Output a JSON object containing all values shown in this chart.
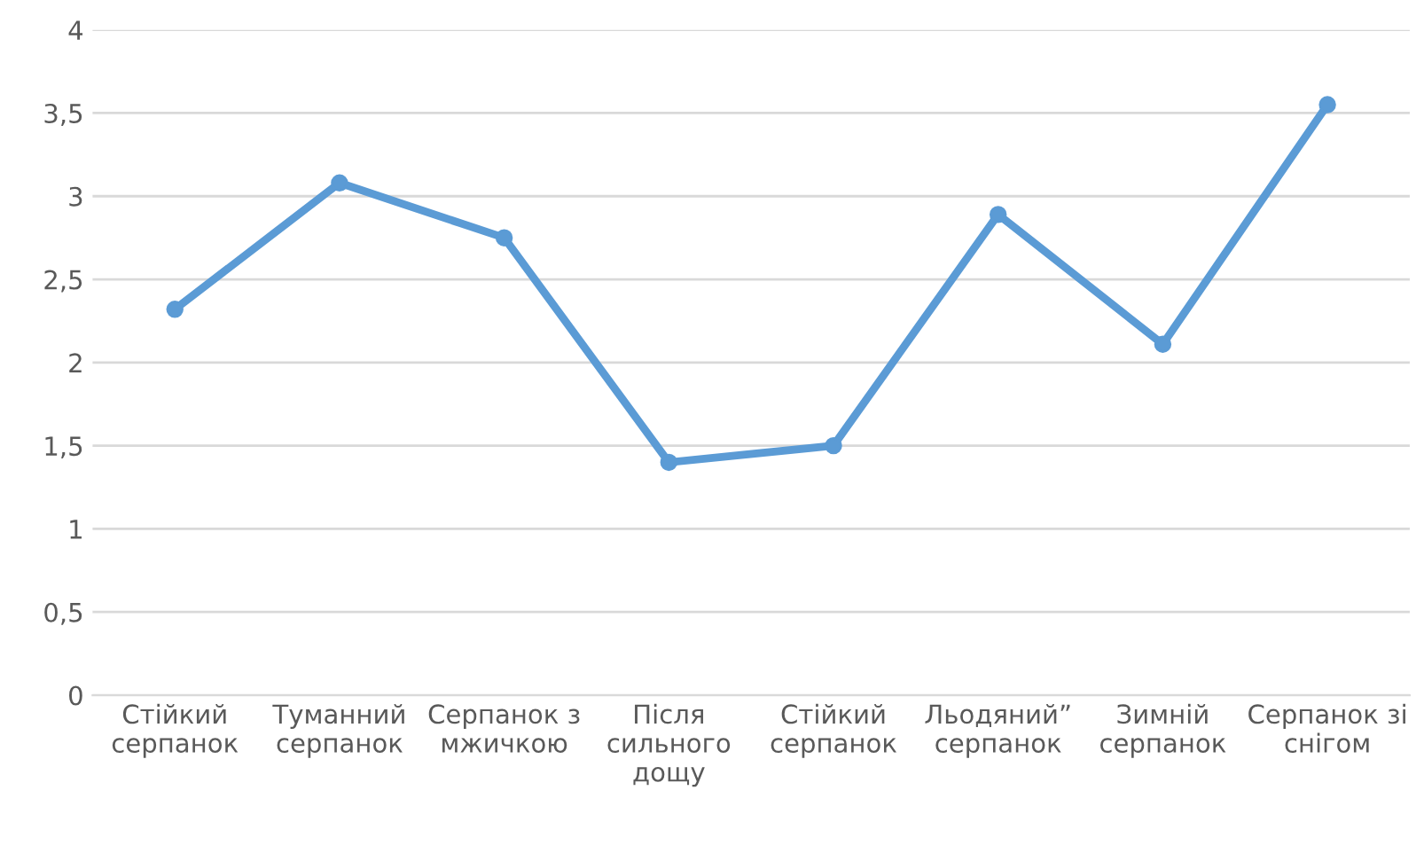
{
  "chart_data": {
    "type": "line",
    "categories": [
      "Стійкий\nсерпанок",
      "Туманний\nсерпанок",
      "Серпанок з\nмжичкою",
      "Після\nсильного\nдощу",
      "Стійкий\nсерпанок",
      "Льодяний”\nсерпанок",
      "Зимній\nсерпанок",
      "Серпанок зі\nснігом"
    ],
    "series": [
      {
        "color": "#5b9bd5",
        "values": [
          2.32,
          3.08,
          2.75,
          1.4,
          1.5,
          2.89,
          2.11,
          3.55
        ]
      }
    ],
    "ylim": [
      0,
      4
    ],
    "yticks": [
      0,
      {
        "value": 0.5,
        "label": "0,5"
      },
      1,
      {
        "value": 1.5,
        "label": "1,5"
      },
      2,
      {
        "value": 2.5,
        "label": "2,5"
      },
      3,
      {
        "value": 3.5,
        "label": "3,5"
      },
      4
    ],
    "grid": "y",
    "marker": "circle",
    "line_style": "solid",
    "legend": false
  }
}
